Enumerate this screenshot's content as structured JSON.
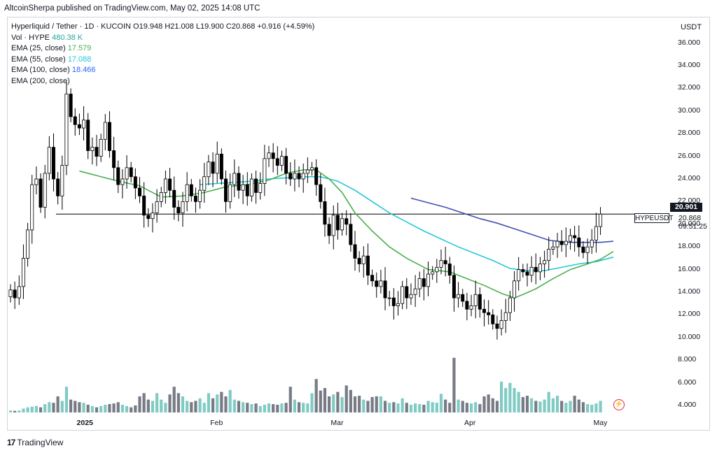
{
  "header": {
    "publisher": "AltcoinSherpa published on TradingView.com, May 02, 2025 14:08 UTC"
  },
  "legend": {
    "title": "Hyperliquid / Tether · 1D · KUCOIN",
    "ohlc": "O19.948 H21.008 L19.900 C20.868 +0.916 (+4.59%)",
    "vol_label": "Vol · HYPE",
    "vol_value": "480.38 K",
    "ema25_label": "EMA (25, close)",
    "ema25_value": "17.579",
    "ema55_label": "EMA (55, close)",
    "ema55_value": "17.088",
    "ema100_label": "EMA (100, close)",
    "ema100_value": "18.466",
    "ema200_label": "EMA (200, close)"
  },
  "axis": {
    "unit": "USDT",
    "price_tag": "20.901",
    "current_price": "20.868",
    "countdown": "09:51:25",
    "symbol_label": "HYPEUSDT"
  },
  "colors": {
    "up": "#ffffff",
    "down": "#000000",
    "wick": "#000000",
    "vol_up": "#80cbc4",
    "vol_down": "#787b86",
    "ema25": "#4caf50",
    "ema55": "#26c6da",
    "ema100": "#3f51b5",
    "hline": "#000000"
  },
  "chart_data": {
    "type": "candlestick",
    "symbol": "HYPEUSDT",
    "ylim": [
      3.0,
      37.5
    ],
    "y_ticks": [
      "36.000",
      "34.000",
      "32.000",
      "30.000",
      "28.000",
      "26.000",
      "24.000",
      "22.000",
      "20.000",
      "18.000",
      "16.000",
      "14.000",
      "12.000",
      "10.000",
      "8.000",
      "6.000",
      "4.000"
    ],
    "x_ticks": [
      {
        "label": "2025",
        "bold": true,
        "index": 17
      },
      {
        "label": "Feb",
        "bold": false,
        "index": 48
      },
      {
        "label": "Mar",
        "bold": false,
        "index": 76
      },
      {
        "label": "Apr",
        "bold": false,
        "index": 107
      },
      {
        "label": "May",
        "bold": false,
        "index": 137
      }
    ],
    "horizontal_line": 20.9,
    "candles_close": [
      14.2,
      13.5,
      14.5,
      17.0,
      19.5,
      23.5,
      24.0,
      21.5,
      24.5,
      26.8,
      24.0,
      22.5,
      25.2,
      31.5,
      29.5,
      28.8,
      28.5,
      29.2,
      26.5,
      26.8,
      26.0,
      27.5,
      29.0,
      26.5,
      25.0,
      23.5,
      24.0,
      25.0,
      24.2,
      23.2,
      22.5,
      20.8,
      20.5,
      21.0,
      22.0,
      22.8,
      24.0,
      23.0,
      21.5,
      21.0,
      22.0,
      23.5,
      22.5,
      22.0,
      23.0,
      24.2,
      25.5,
      24.5,
      26.2,
      24.0,
      22.0,
      23.5,
      24.5,
      23.0,
      23.5,
      22.5,
      24.0,
      22.8,
      23.6,
      25.8,
      26.3,
      25.8,
      25.2,
      26.0,
      24.5,
      24.0,
      24.5,
      24.0,
      24.5,
      24.8,
      25.0,
      23.5,
      22.0,
      20.0,
      19.0,
      20.8,
      19.5,
      20.5,
      20.0,
      18.2,
      17.0,
      16.5,
      17.2,
      15.5,
      15.0,
      14.5,
      15.0,
      13.5,
      13.5,
      12.8,
      13.0,
      14.5,
      13.5,
      13.8,
      14.3,
      15.2,
      14.5,
      15.6,
      15.8,
      16.2,
      16.8,
      16.5,
      15.5,
      13.5,
      13.8,
      13.2,
      12.5,
      12.8,
      13.8,
      12.5,
      12.2,
      12.0,
      11.2,
      10.8,
      11.5,
      12.2,
      13.5,
      15.0,
      16.0,
      15.8,
      15.5,
      16.2,
      15.8,
      16.5,
      16.8,
      17.8,
      18.0,
      18.5,
      18.2,
      18.5,
      19.0,
      18.8,
      18.0,
      17.5,
      18.0,
      18.6,
      19.8,
      20.9
    ],
    "volumes": [
      0.3,
      0.25,
      0.3,
      0.6,
      0.8,
      0.9,
      1.0,
      0.8,
      1.3,
      1.6,
      1.5,
      2.5,
      1.8,
      4.0,
      2.0,
      1.8,
      1.6,
      1.5,
      1.2,
      1.0,
      0.8,
      1.0,
      1.2,
      1.3,
      1.4,
      1.6,
      1.2,
      1.0,
      0.8,
      1.1,
      2.5,
      3.0,
      2.0,
      1.8,
      3.0,
      2.0,
      1.5,
      2.8,
      4.0,
      3.0,
      2.5,
      1.8,
      1.6,
      1.8,
      2.2,
      1.5,
      3.0,
      2.2,
      2.8,
      3.2,
      2.5,
      3.5,
      2.0,
      1.8,
      1.6,
      1.5,
      1.3,
      1.4,
      1.0,
      1.2,
      1.4,
      1.3,
      1.2,
      1.4,
      1.5,
      4.0,
      2.0,
      1.6,
      1.5,
      1.4,
      3.0,
      5.2,
      3.4,
      3.8,
      2.5,
      2.8,
      3.2,
      2.4,
      4.2,
      3.5,
      2.5,
      2.6,
      2.0,
      1.8,
      2.4,
      2.5,
      2.5,
      1.8,
      1.5,
      1.6,
      1.4,
      2.2,
      1.5,
      1.2,
      1.4,
      1.3,
      1.2,
      1.8,
      1.6,
      1.5,
      2.9,
      2.0,
      1.5,
      8.5,
      2.0,
      1.8,
      1.5,
      1.4,
      1.6,
      1.3,
      2.5,
      2.8,
      2.2,
      1.8,
      4.8,
      3.8,
      4.6,
      3.8,
      3.2,
      2.4,
      2.6,
      2.2,
      1.8,
      1.7,
      2.0,
      3.2,
      2.2,
      2.6,
      1.8,
      1.5,
      1.8,
      2.6,
      2.0,
      1.6,
      1.3,
      1.2,
      1.4,
      1.8
    ],
    "ema25": [
      {
        "i": 16,
        "v": 24.7
      },
      {
        "i": 20,
        "v": 24.3
      },
      {
        "i": 25,
        "v": 23.8
      },
      {
        "i": 30,
        "v": 23.4
      },
      {
        "i": 35,
        "v": 22.4
      },
      {
        "i": 40,
        "v": 22.5
      },
      {
        "i": 45,
        "v": 22.8
      },
      {
        "i": 50,
        "v": 23.3
      },
      {
        "i": 55,
        "v": 23.5
      },
      {
        "i": 60,
        "v": 23.9
      },
      {
        "i": 64,
        "v": 24.5
      },
      {
        "i": 68,
        "v": 24.8
      },
      {
        "i": 71,
        "v": 24.8
      },
      {
        "i": 74,
        "v": 24.0
      },
      {
        "i": 77,
        "v": 22.8
      },
      {
        "i": 80,
        "v": 21.0
      },
      {
        "i": 84,
        "v": 19.4
      },
      {
        "i": 88,
        "v": 18.0
      },
      {
        "i": 92,
        "v": 17.0
      },
      {
        "i": 97,
        "v": 16.0
      },
      {
        "i": 102,
        "v": 15.8
      },
      {
        "i": 106,
        "v": 15.2
      },
      {
        "i": 110,
        "v": 14.6
      },
      {
        "i": 114,
        "v": 13.9
      },
      {
        "i": 117,
        "v": 13.5
      },
      {
        "i": 119,
        "v": 13.8
      },
      {
        "i": 122,
        "v": 14.3
      },
      {
        "i": 126,
        "v": 15.2
      },
      {
        "i": 130,
        "v": 16.0
      },
      {
        "i": 134,
        "v": 16.5
      },
      {
        "i": 137,
        "v": 16.9
      },
      {
        "i": 140,
        "v": 17.6
      }
    ],
    "ema55": [
      {
        "i": 44,
        "v": 23.5
      },
      {
        "i": 48,
        "v": 23.6
      },
      {
        "i": 52,
        "v": 23.7
      },
      {
        "i": 56,
        "v": 23.8
      },
      {
        "i": 60,
        "v": 24.0
      },
      {
        "i": 64,
        "v": 24.1
      },
      {
        "i": 68,
        "v": 24.2
      },
      {
        "i": 72,
        "v": 24.2
      },
      {
        "i": 76,
        "v": 23.8
      },
      {
        "i": 80,
        "v": 23.0
      },
      {
        "i": 84,
        "v": 22.0
      },
      {
        "i": 88,
        "v": 21.0
      },
      {
        "i": 92,
        "v": 20.2
      },
      {
        "i": 96,
        "v": 19.4
      },
      {
        "i": 100,
        "v": 18.7
      },
      {
        "i": 104,
        "v": 18.0
      },
      {
        "i": 108,
        "v": 17.4
      },
      {
        "i": 112,
        "v": 16.8
      },
      {
        "i": 116,
        "v": 16.1
      },
      {
        "i": 120,
        "v": 15.9
      },
      {
        "i": 124,
        "v": 15.9
      },
      {
        "i": 128,
        "v": 16.2
      },
      {
        "i": 132,
        "v": 16.5
      },
      {
        "i": 136,
        "v": 16.7
      },
      {
        "i": 140,
        "v": 17.1
      }
    ],
    "ema100": [
      {
        "i": 93,
        "v": 22.3
      },
      {
        "i": 97,
        "v": 21.9
      },
      {
        "i": 101,
        "v": 21.5
      },
      {
        "i": 105,
        "v": 21.0
      },
      {
        "i": 109,
        "v": 20.5
      },
      {
        "i": 113,
        "v": 20.1
      },
      {
        "i": 117,
        "v": 19.6
      },
      {
        "i": 121,
        "v": 19.1
      },
      {
        "i": 125,
        "v": 18.6
      },
      {
        "i": 129,
        "v": 18.4
      },
      {
        "i": 133,
        "v": 18.4
      },
      {
        "i": 137,
        "v": 18.4
      },
      {
        "i": 140,
        "v": 18.5
      }
    ]
  }
}
